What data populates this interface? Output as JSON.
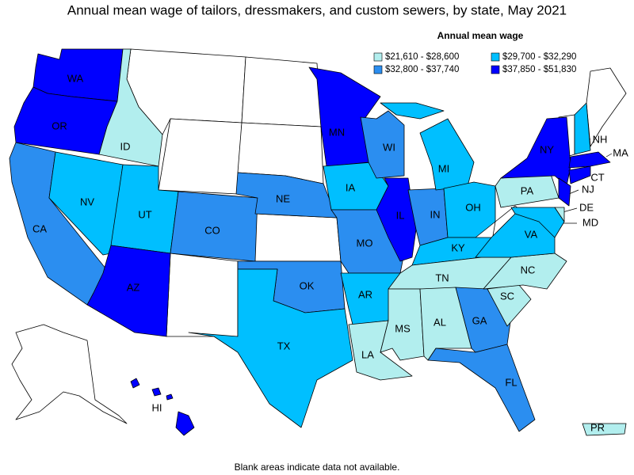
{
  "title": "Annual mean wage of tailors, dressmakers, and custom sewers, by state, May 2021",
  "legend": {
    "title": "Annual mean wage",
    "items": [
      {
        "label": "$21,610 - $28,600",
        "color": "#b2eeee"
      },
      {
        "label": "$29,700 - $32,290",
        "color": "#00bfff"
      },
      {
        "label": "$32,800 - $37,740",
        "color": "#2b8ef0"
      },
      {
        "label": "$37,850 - $51,830",
        "color": "#0000ff"
      }
    ]
  },
  "states": [
    {
      "label": "WA",
      "color": "#0000ff"
    },
    {
      "label": "OR",
      "color": "#0000ff"
    },
    {
      "label": "CA",
      "color": "#2b8ef0"
    },
    {
      "label": "NV",
      "color": "#00bfff"
    },
    {
      "label": "ID",
      "color": "#b2eeee"
    },
    {
      "label": "UT",
      "color": "#00bfff"
    },
    {
      "label": "AZ",
      "color": "#0000ff"
    },
    {
      "label": "CO",
      "color": "#2b8ef0"
    },
    {
      "label": "NE",
      "color": "#2b8ef0"
    },
    {
      "label": "OK",
      "color": "#2b8ef0"
    },
    {
      "label": "TX",
      "color": "#00bfff"
    },
    {
      "label": "MN",
      "color": "#0000ff"
    },
    {
      "label": "IA",
      "color": "#00bfff"
    },
    {
      "label": "MO",
      "color": "#2b8ef0"
    },
    {
      "label": "AR",
      "color": "#00bfff"
    },
    {
      "label": "LA",
      "color": "#b2eeee"
    },
    {
      "label": "WI",
      "color": "#2b8ef0"
    },
    {
      "label": "IL",
      "color": "#0000ff"
    },
    {
      "label": "IN",
      "color": "#2b8ef0"
    },
    {
      "label": "MI",
      "color": "#00bfff"
    },
    {
      "label": "OH",
      "color": "#00bfff"
    },
    {
      "label": "KY",
      "color": "#00bfff"
    },
    {
      "label": "TN",
      "color": "#b2eeee"
    },
    {
      "label": "MS",
      "color": "#b2eeee"
    },
    {
      "label": "AL",
      "color": "#b2eeee"
    },
    {
      "label": "GA",
      "color": "#2b8ef0"
    },
    {
      "label": "FL",
      "color": "#2b8ef0"
    },
    {
      "label": "SC",
      "color": "#b2eeee"
    },
    {
      "label": "NC",
      "color": "#b2eeee"
    },
    {
      "label": "VA",
      "color": "#00bfff"
    },
    {
      "label": "PA",
      "color": "#b2eeee"
    },
    {
      "label": "NY",
      "color": "#0000ff"
    },
    {
      "label": "NJ",
      "color": "#0000ff"
    },
    {
      "label": "MD",
      "color": "#00bfff"
    },
    {
      "label": "DE",
      "color": "#b2eeee"
    },
    {
      "label": "CT",
      "color": "#0000ff"
    },
    {
      "label": "MA",
      "color": "#0000ff"
    },
    {
      "label": "NH",
      "color": "#00bfff"
    },
    {
      "label": "HI",
      "color": "#0000ff"
    },
    {
      "label": "PR",
      "color": "#b2eeee"
    }
  ],
  "footnote": "Blank areas indicate data not available."
}
